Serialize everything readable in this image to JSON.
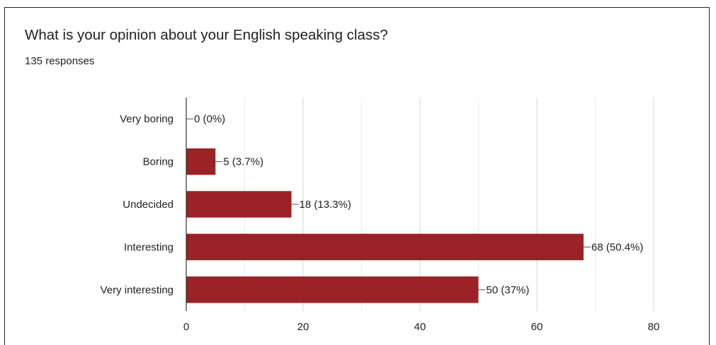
{
  "question": {
    "title": "What is your opinion about your English speaking class?",
    "responses": "135 responses"
  },
  "chart_data": {
    "type": "bar",
    "orientation": "horizontal",
    "title": "What is your opinion about your English speaking class?",
    "subtitle": "135 responses",
    "categories": [
      "Very boring",
      "Boring",
      "Undecided",
      "Interesting",
      "Very interesting"
    ],
    "values": [
      0,
      5,
      18,
      68,
      50
    ],
    "data_labels": [
      "0 (0%)",
      "5 (3.7%)",
      "18 (13.3%)",
      "68 (50.4%)",
      "50 (37%)"
    ],
    "xlim": [
      0,
      80
    ],
    "xticks": [
      0,
      20,
      40,
      60,
      80
    ],
    "grid": true,
    "bar_color": "#9b2226"
  }
}
